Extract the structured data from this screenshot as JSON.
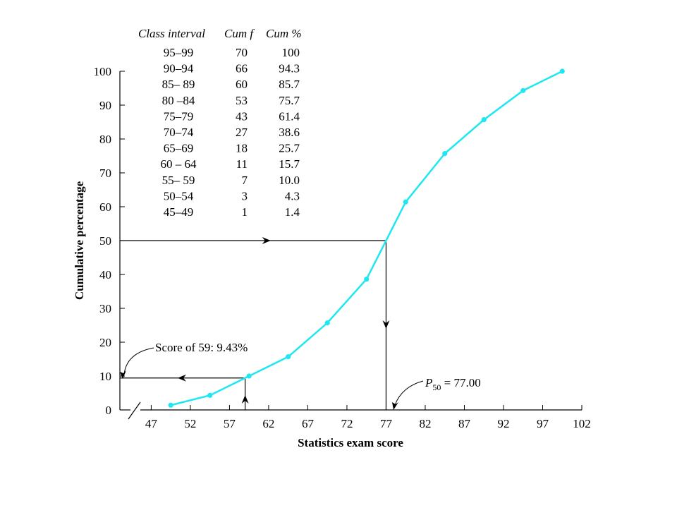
{
  "chart_data": {
    "type": "line",
    "xlabel": "Statistics exam score",
    "ylabel": "Cumulative percentage",
    "xlim": [
      43,
      102
    ],
    "ylim": [
      0,
      100
    ],
    "x_ticks": [
      47,
      52,
      57,
      62,
      67,
      72,
      77,
      82,
      87,
      92,
      97,
      102
    ],
    "y_ticks": [
      0,
      10,
      20,
      30,
      40,
      50,
      60,
      70,
      80,
      90,
      100
    ],
    "line_color": "#1ee7f2",
    "series": [
      {
        "x": [
          49.5,
          54.5,
          59.5,
          64.5,
          69.5,
          74.5,
          79.5,
          84.5,
          89.5,
          94.5,
          99.5
        ],
        "y": [
          1.4,
          4.3,
          10.0,
          15.7,
          25.7,
          38.6,
          61.4,
          75.7,
          85.7,
          94.3,
          100
        ]
      }
    ],
    "table": {
      "headers": [
        "Class interval",
        "Cum f",
        "Cum %"
      ],
      "rows": [
        [
          "95–99",
          "70",
          "100"
        ],
        [
          "90–94",
          "66",
          "94.3"
        ],
        [
          "85– 89",
          "60",
          "85.7"
        ],
        [
          "80 –84",
          "53",
          "75.7"
        ],
        [
          "75–79",
          "43",
          "61.4"
        ],
        [
          "70–74",
          "27",
          "38.6"
        ],
        [
          "65–69",
          "18",
          "25.7"
        ],
        [
          "60 – 64",
          "11",
          "15.7"
        ],
        [
          "55– 59",
          "7",
          "10.0"
        ],
        [
          "50–54",
          "3",
          "4.3"
        ],
        [
          "45–49",
          "1",
          "1.4"
        ]
      ]
    },
    "annotations": {
      "score_text": "Score of 59: 9.43%",
      "score_x": 59,
      "score_y": 9.43,
      "p50_symbol": "P",
      "p50_sub": "50",
      "p50_value": " = 77.00",
      "p50_x": 77,
      "p50_y": 50
    }
  }
}
